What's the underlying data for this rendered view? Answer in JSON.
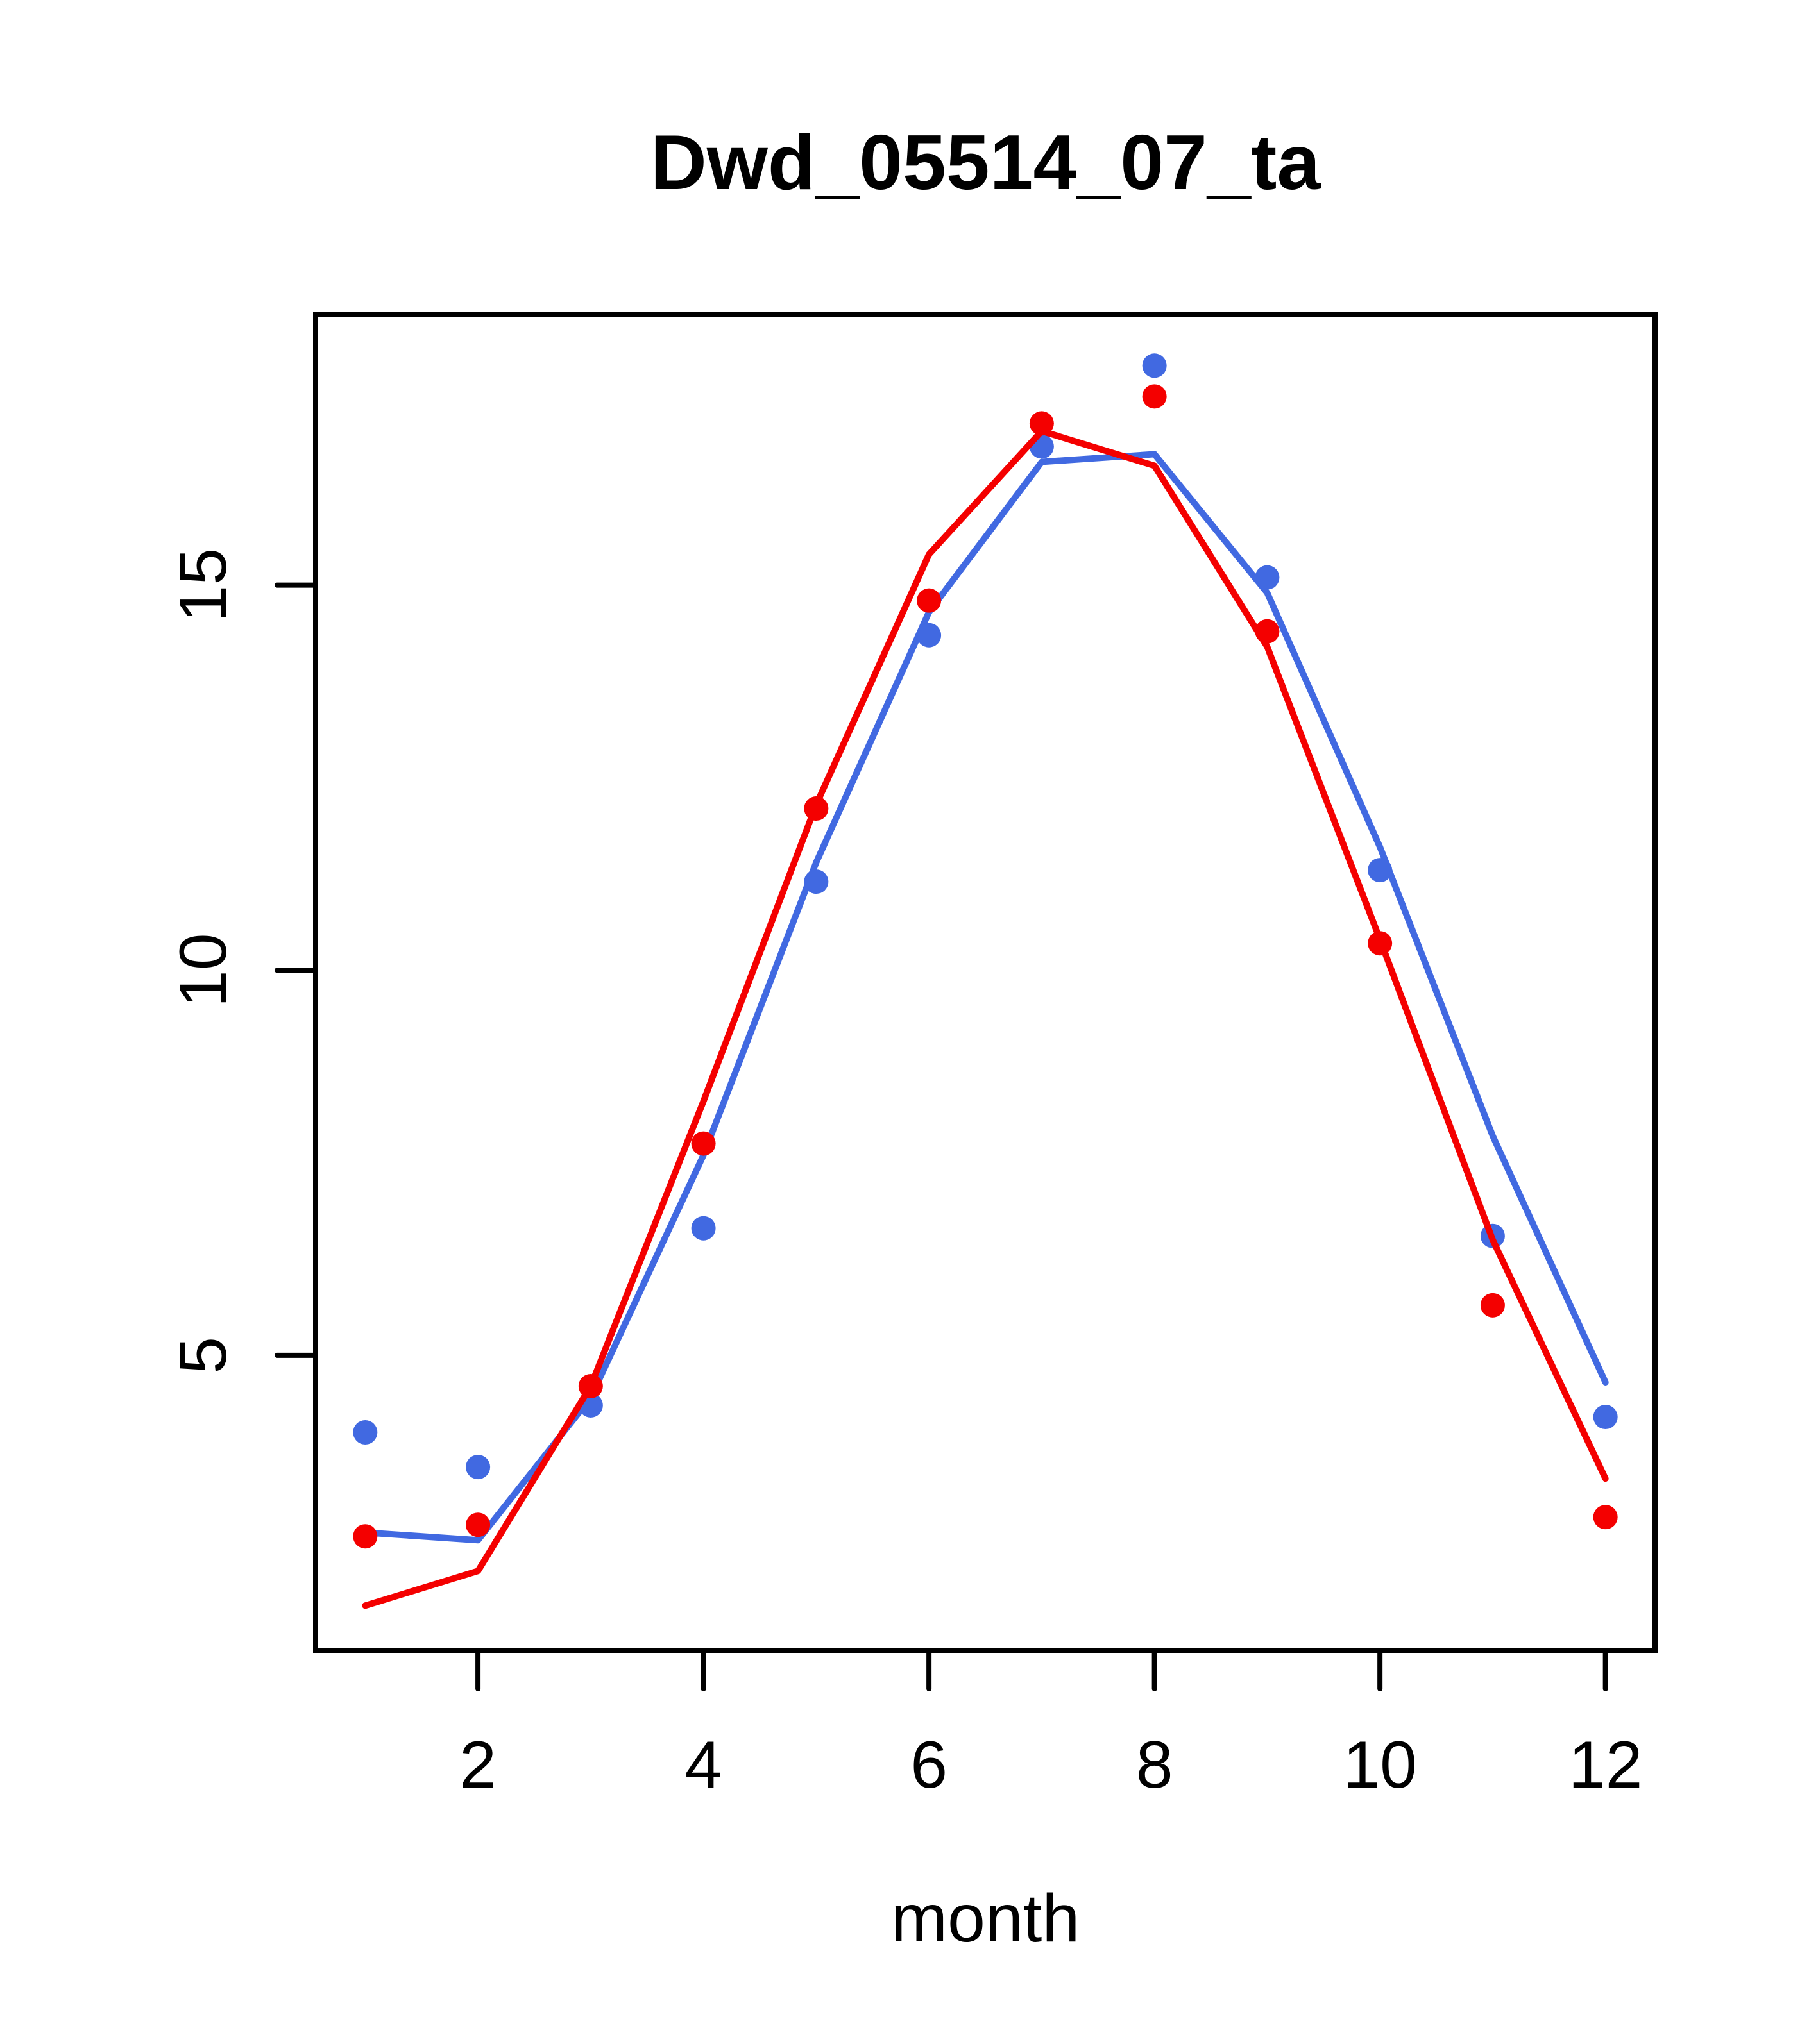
{
  "figure": {
    "title": "Dwd_05514_07_ta",
    "xlabel": "month",
    "background": "#ffffff"
  },
  "chart_data": {
    "type": "line",
    "title": "Dwd_05514_07_ta",
    "xlabel": "month",
    "ylabel": "",
    "x": [
      1,
      2,
      3,
      4,
      5,
      6,
      7,
      8,
      9,
      10,
      11,
      12
    ],
    "series": [
      {
        "name": "blue-line",
        "style": "line",
        "color": "#4169e1",
        "values": [
          2.7,
          2.6,
          4.45,
          7.6,
          11.4,
          14.65,
          16.6,
          16.7,
          14.9,
          11.6,
          7.85,
          4.65
        ]
      },
      {
        "name": "blue-points",
        "style": "points",
        "color": "#4169e1",
        "values": [
          4.0,
          3.55,
          4.35,
          6.65,
          11.15,
          14.35,
          16.8,
          17.85,
          15.1,
          11.3,
          6.55,
          4.2
        ]
      },
      {
        "name": "red-line",
        "style": "line",
        "color": "#f40000",
        "values": [
          1.75,
          2.2,
          4.6,
          8.3,
          12.15,
          15.4,
          17.0,
          16.55,
          14.2,
          10.4,
          6.5,
          3.4
        ]
      },
      {
        "name": "red-points",
        "style": "points",
        "color": "#f40000",
        "values": [
          2.65,
          2.8,
          4.6,
          7.75,
          12.1,
          14.8,
          17.1,
          17.45,
          14.4,
          10.35,
          5.65,
          2.9
        ]
      }
    ],
    "x_ticks": [
      2,
      4,
      6,
      8,
      10,
      12
    ],
    "y_ticks": [
      5,
      10,
      15
    ],
    "xlim": [
      0.56,
      12.44
    ],
    "ylim": [
      1.17,
      18.51
    ],
    "grid": false,
    "legend": null,
    "box": true
  },
  "colors": {
    "blue_series": "#4169e1",
    "red_series": "#f40000",
    "axis": "#000000",
    "background": "#ffffff"
  }
}
